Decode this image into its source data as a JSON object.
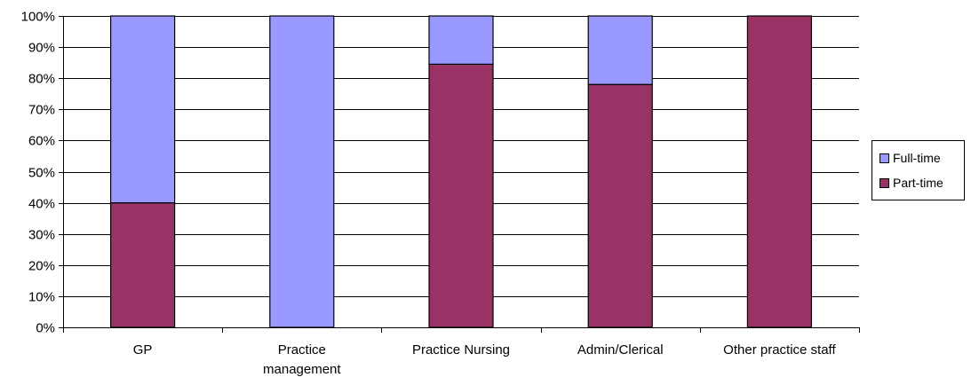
{
  "chart_data": {
    "type": "bar",
    "stacked": true,
    "categories": [
      "GP",
      "Practice management",
      "Practice Nursing",
      "Admin/Clerical",
      "Other practice staff"
    ],
    "category_label_lines": [
      [
        "GP"
      ],
      [
        "Practice",
        "management"
      ],
      [
        "Practice Nursing"
      ],
      [
        "Admin/Clerical"
      ],
      [
        "Other practice staff"
      ]
    ],
    "series": [
      {
        "name": "Part-time",
        "values": [
          40,
          0,
          84.5,
          78,
          100
        ],
        "color": "#993366"
      },
      {
        "name": "Full-time",
        "values": [
          60,
          100,
          15.5,
          22,
          0
        ],
        "color": "#9999ff"
      }
    ],
    "legend": {
      "placement": "right",
      "entries": [
        "Full-time",
        "Part-time"
      ]
    },
    "y_ticks": [
      "0%",
      "10%",
      "20%",
      "30%",
      "40%",
      "50%",
      "60%",
      "70%",
      "80%",
      "90%",
      "100%"
    ],
    "ylim": [
      0,
      100
    ],
    "grid": true,
    "title": "",
    "xlabel": "",
    "ylabel": ""
  }
}
